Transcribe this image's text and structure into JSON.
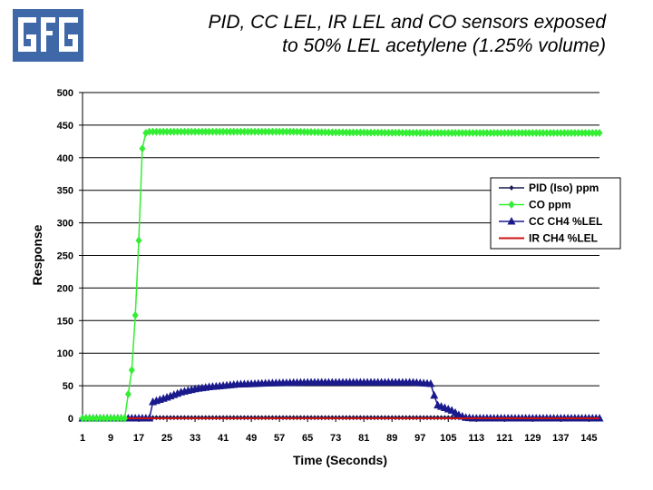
{
  "header": {
    "logo_alt": "GfG",
    "title_line1": "PID, CC LEL, IR LEL and CO sensors exposed",
    "title_line2": "to 50% LEL acetylene (1.25% volume)"
  },
  "colors": {
    "logo": "#3f68a8",
    "pid": "#1a1a4e",
    "co": "#33ee33",
    "cc": "#1a1a8c",
    "ir": "#cc1111",
    "grid": "#000000"
  },
  "chart_data": {
    "type": "line",
    "title": "PID, CC LEL, IR LEL and CO sensors exposed to 50% LEL acetylene (1.25% volume)",
    "xlabel": "Time (Seconds)",
    "ylabel": "Response",
    "xlim": [
      1,
      148
    ],
    "ylim": [
      0,
      500
    ],
    "yticks": [
      "0",
      "50",
      "100",
      "150",
      "200",
      "250",
      "300",
      "350",
      "400",
      "450",
      "500"
    ],
    "xticks": [
      "1",
      "9",
      "17",
      "25",
      "33",
      "41",
      "49",
      "57",
      "65",
      "73",
      "81",
      "89",
      "97",
      "105",
      "113",
      "121",
      "129",
      "137",
      "145"
    ],
    "grid": "horizontal",
    "legend_position": "right",
    "series": [
      {
        "name": "PID (Iso) ppm",
        "marker": "small-diamond",
        "points": [
          [
            1,
            0
          ],
          [
            14,
            0
          ],
          [
            15,
            1
          ],
          [
            16,
            1
          ],
          [
            17,
            1
          ],
          [
            20,
            1
          ],
          [
            148,
            1
          ]
        ]
      },
      {
        "name": "CO ppm",
        "marker": "diamond",
        "points": [
          [
            1,
            0
          ],
          [
            13,
            0
          ],
          [
            15,
            74
          ],
          [
            16,
            158
          ],
          [
            17,
            273
          ],
          [
            18,
            414
          ],
          [
            19,
            438
          ],
          [
            20,
            440
          ],
          [
            30,
            440
          ],
          [
            60,
            440
          ],
          [
            70,
            439
          ],
          [
            100,
            438
          ],
          [
            130,
            438
          ],
          [
            148,
            438
          ]
        ]
      },
      {
        "name": "CC CH4 %LEL",
        "marker": "triangle",
        "points": [
          [
            1,
            0
          ],
          [
            20,
            0
          ],
          [
            21,
            25
          ],
          [
            25,
            32
          ],
          [
            29,
            40
          ],
          [
            33,
            45
          ],
          [
            37,
            48
          ],
          [
            41,
            50
          ],
          [
            45,
            52
          ],
          [
            50,
            53
          ],
          [
            55,
            54
          ],
          [
            65,
            55
          ],
          [
            75,
            55
          ],
          [
            85,
            55
          ],
          [
            95,
            55
          ],
          [
            100,
            53
          ],
          [
            101,
            35
          ],
          [
            102,
            20
          ],
          [
            104,
            16
          ],
          [
            106,
            12
          ],
          [
            108,
            5
          ],
          [
            110,
            1
          ],
          [
            112,
            0
          ],
          [
            148,
            0
          ]
        ]
      },
      {
        "name": "IR CH4 %LEL",
        "marker": "none",
        "points": [
          [
            1,
            0
          ],
          [
            148,
            0
          ]
        ]
      }
    ]
  }
}
